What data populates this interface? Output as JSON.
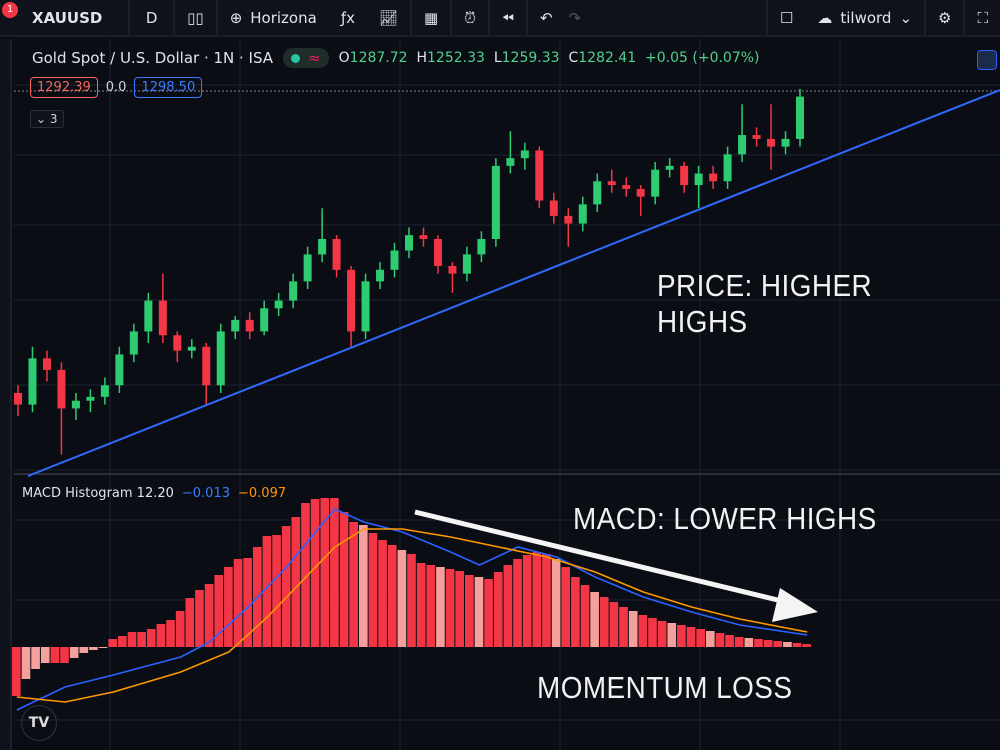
{
  "toolbar": {
    "notification_count": "1",
    "symbol": "XAUUSD",
    "interval": "D",
    "horizontal_line": "Horizona",
    "user": "tilword"
  },
  "legend": {
    "title": "Gold Spot / U.S. Dollar · 1N · ISA",
    "open_label": "O",
    "open": "1287.72",
    "high_label": "H",
    "high": "1252.33",
    "low_label": "L",
    "low": "1259.33",
    "close_label": "C",
    "close": "1282.41",
    "change": "+0.05 (+0.07%)",
    "sell_price": "1292.39",
    "spread": "0.0",
    "buy_price": "1298.50",
    "collapsed_count": "3"
  },
  "macd_legend": {
    "name": "MACD Histogram 12.20",
    "macd": "−0.013",
    "signal": "−0.097"
  },
  "annotations": {
    "price": "PRICE: HIGHER HIGHS",
    "macd": "MACD: LOWER HIGHS",
    "momentum": "MOMENTUM LOSS"
  },
  "colors": {
    "up": "#2ecc71",
    "down": "#f23645",
    "hist_strong": "#f23645",
    "hist_weak": "#f4a19d",
    "macd": "#2962ff",
    "signal": "#ff9800",
    "trendline": "#2f6bff"
  },
  "chart_data": [
    {
      "type": "candlestick",
      "title": "Gold Spot / U.S. Dollar",
      "note_axes": "no price axis shown",
      "candles": [
        [
          20,
          22,
          14,
          17
        ],
        [
          17,
          32,
          15,
          29
        ],
        [
          29,
          31,
          23,
          26
        ],
        [
          26,
          28,
          4,
          16
        ],
        [
          16,
          20,
          13,
          18
        ],
        [
          18,
          21,
          15,
          19
        ],
        [
          19,
          24,
          17,
          22
        ],
        [
          22,
          32,
          20,
          30
        ],
        [
          30,
          38,
          28,
          36
        ],
        [
          36,
          46,
          33,
          44
        ],
        [
          44,
          51,
          33,
          35
        ],
        [
          35,
          36,
          28,
          31
        ],
        [
          31,
          34,
          29,
          32
        ],
        [
          32,
          33,
          17,
          22
        ],
        [
          22,
          38,
          20,
          36
        ],
        [
          36,
          40,
          34,
          39
        ],
        [
          39,
          41,
          34,
          36
        ],
        [
          36,
          44,
          35,
          42
        ],
        [
          42,
          46,
          40,
          44
        ],
        [
          44,
          51,
          42,
          49
        ],
        [
          49,
          58,
          47,
          56
        ],
        [
          56,
          68,
          54,
          60
        ],
        [
          60,
          61,
          50,
          52
        ],
        [
          52,
          53,
          32,
          36
        ],
        [
          36,
          51,
          34,
          49
        ],
        [
          49,
          54,
          47,
          52
        ],
        [
          52,
          59,
          50,
          57
        ],
        [
          57,
          63,
          55,
          61
        ],
        [
          61,
          63,
          58,
          60
        ],
        [
          60,
          61,
          51,
          53
        ],
        [
          53,
          54,
          46,
          51
        ],
        [
          51,
          58,
          49,
          56
        ],
        [
          56,
          62,
          54,
          60
        ],
        [
          60,
          81,
          58,
          79
        ],
        [
          79,
          88,
          77,
          81
        ],
        [
          81,
          85,
          78,
          83
        ],
        [
          83,
          84,
          68,
          70
        ],
        [
          70,
          72,
          64,
          66
        ],
        [
          66,
          68,
          58,
          64
        ],
        [
          64,
          71,
          62,
          69
        ],
        [
          69,
          77,
          67,
          75
        ],
        [
          75,
          78,
          72,
          74
        ],
        [
          74,
          76,
          71,
          73
        ],
        [
          73,
          74,
          66,
          71
        ],
        [
          71,
          80,
          69,
          78
        ],
        [
          78,
          81,
          76,
          79
        ],
        [
          79,
          80,
          72,
          74
        ],
        [
          74,
          79,
          68,
          77
        ],
        [
          77,
          79,
          73,
          75
        ],
        [
          75,
          84,
          73,
          82
        ],
        [
          82,
          95,
          80,
          87
        ],
        [
          87,
          89,
          84,
          86
        ],
        [
          86,
          95,
          78,
          84
        ],
        [
          84,
          88,
          82,
          86
        ],
        [
          86,
          99,
          84,
          97
        ]
      ]
    },
    {
      "type": "bar",
      "title": "MACD Histogram 12.20",
      "histogram": [
        -49,
        -32,
        -22,
        -16,
        -16,
        -16,
        -11,
        -6,
        -3,
        -1,
        8,
        11,
        15,
        15,
        18,
        23,
        27,
        36,
        49,
        57,
        63,
        72,
        80,
        88,
        89,
        100,
        111,
        112,
        121,
        130,
        144,
        148,
        149,
        149,
        135,
        125,
        122,
        114,
        107,
        102,
        97,
        93,
        84,
        82,
        80,
        78,
        76,
        72,
        70,
        68,
        75,
        82,
        88,
        92,
        95,
        93,
        88,
        80,
        70,
        62,
        55,
        50,
        45,
        40,
        36,
        32,
        29,
        26,
        24,
        22,
        20,
        18,
        16,
        14,
        12,
        10,
        9,
        8,
        7,
        6,
        5,
        4,
        3
      ],
      "macd": [
        [
          0,
          -63
        ],
        [
          5,
          -40
        ],
        [
          10,
          -28
        ],
        [
          17,
          -10
        ],
        [
          20,
          5
        ],
        [
          24,
          40
        ],
        [
          28,
          80
        ],
        [
          31,
          115
        ],
        [
          33,
          138
        ],
        [
          36,
          125
        ],
        [
          40,
          115
        ],
        [
          45,
          95
        ],
        [
          48,
          82
        ],
        [
          52,
          100
        ],
        [
          56,
          90
        ],
        [
          60,
          70
        ],
        [
          65,
          50
        ],
        [
          70,
          35
        ],
        [
          75,
          22
        ],
        [
          82,
          12
        ]
      ],
      "signal": [
        [
          0,
          -50
        ],
        [
          5,
          -55
        ],
        [
          10,
          -45
        ],
        [
          17,
          -25
        ],
        [
          22,
          -5
        ],
        [
          26,
          30
        ],
        [
          30,
          70
        ],
        [
          33,
          100
        ],
        [
          36,
          118
        ],
        [
          40,
          118
        ],
        [
          45,
          110
        ],
        [
          50,
          100
        ],
        [
          55,
          90
        ],
        [
          60,
          75
        ],
        [
          65,
          55
        ],
        [
          70,
          40
        ],
        [
          75,
          28
        ],
        [
          82,
          15
        ]
      ]
    }
  ]
}
